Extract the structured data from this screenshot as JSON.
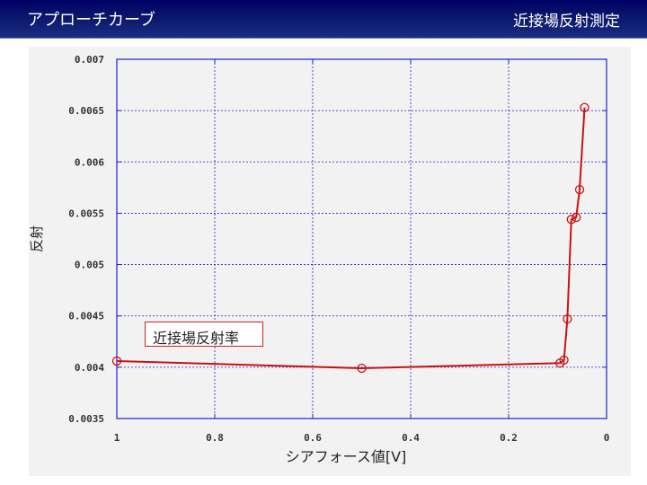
{
  "header": {
    "left_title": "アプローチカーブ",
    "right_title": "近接場反射測定"
  },
  "colors": {
    "header_bg": "#0d1b6e",
    "series": "#cc1111",
    "grid": "#2222cc",
    "plot_frame": "#2222cc"
  },
  "chart_data": {
    "type": "line",
    "title": "",
    "xlabel": "シアフォース値[V]",
    "ylabel": "反射",
    "xlim": [
      1,
      0
    ],
    "ylim": [
      0.0035,
      0.007
    ],
    "x_ticks": [
      1,
      0.8,
      0.6,
      0.4,
      0.2,
      0
    ],
    "x_tick_labels": [
      "1",
      "0.8",
      "0.6",
      "0.4",
      "0.2",
      "0"
    ],
    "y_ticks": [
      0.0035,
      0.004,
      0.0045,
      0.005,
      0.0055,
      0.006,
      0.0065,
      0.007
    ],
    "y_tick_labels": [
      "0.0035",
      "0.004",
      "0.0045",
      "0.005",
      "0.0055",
      "0.006",
      "0.0065",
      "0.007"
    ],
    "grid": true,
    "legend_position": "left",
    "series": [
      {
        "name": "近接場反射率",
        "marker": "circle",
        "x": [
          1.0,
          0.5,
          0.095,
          0.087,
          0.08,
          0.072,
          0.062,
          0.055,
          0.045
        ],
        "y": [
          0.00406,
          0.00399,
          0.00404,
          0.00407,
          0.00447,
          0.00544,
          0.00546,
          0.00573,
          0.00653
        ]
      }
    ]
  }
}
